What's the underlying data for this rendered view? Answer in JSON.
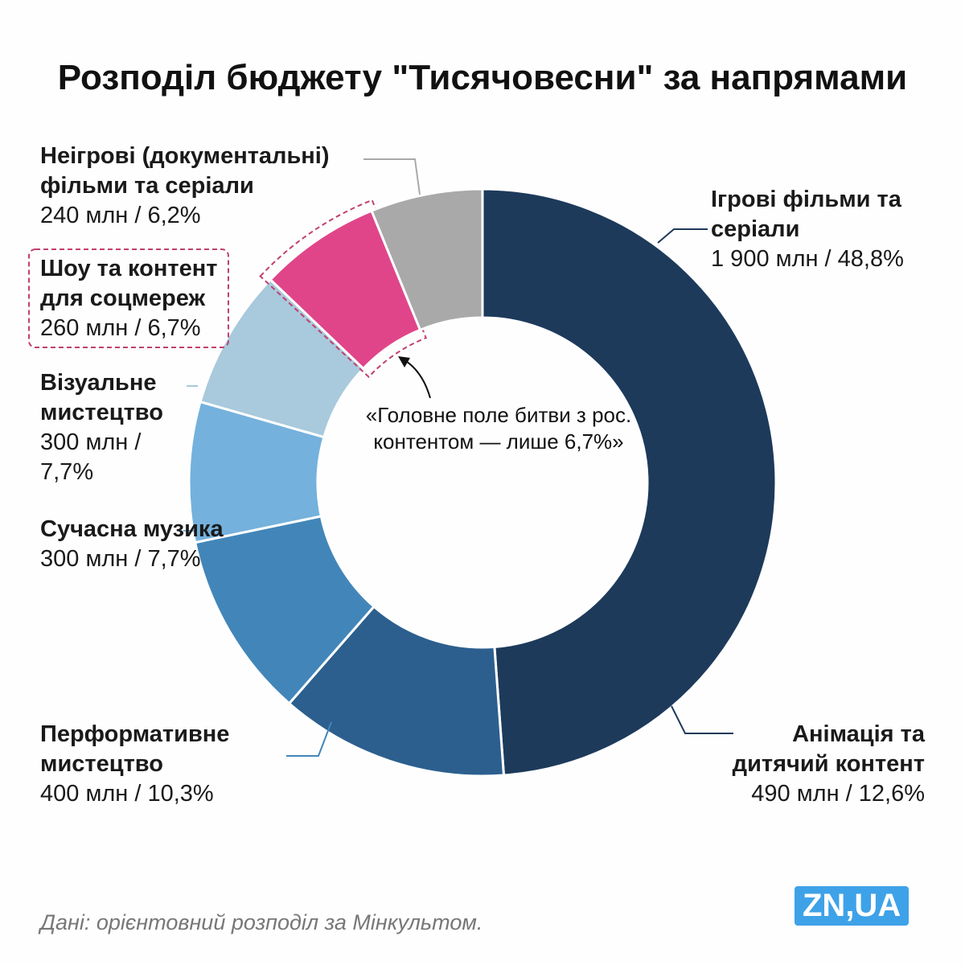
{
  "chart_data": {
    "type": "donut",
    "title": "Розподіл бюджету \"Тисячовесни\" за напрямами",
    "categories": [
      "Ігрові фільми та серіали",
      "Анімація та дитячий контент",
      "Перформативне мистецтво",
      "Сучасна музика",
      "Візуальне мистецтво",
      "Шоу та контент для соцмереж",
      "Неігрові (документальні) фільми та серіали"
    ],
    "values": [
      1900,
      490,
      400,
      300,
      300,
      260,
      240
    ],
    "value_labels": [
      "1 900 млн / 48,8%",
      "490 млн / 12,6%",
      "400 млн / 10,3%",
      "300 млн / 7,7%",
      "300 млн / 7,7%",
      "260 млн / 6,7%",
      "240 млн / 6,2%"
    ],
    "colors": [
      "#1d3a5b",
      "#2c5f8e",
      "#4286b9",
      "#74b1dc",
      "#a9c9dc",
      "#e0458a",
      "#a9a9a9"
    ],
    "annotation": "«Головне поле битви з рос. контентом — лише 6,7%»",
    "source": "Дані: орієнтовний розподіл за Мінкультом."
  },
  "logo": "ZN,UA"
}
